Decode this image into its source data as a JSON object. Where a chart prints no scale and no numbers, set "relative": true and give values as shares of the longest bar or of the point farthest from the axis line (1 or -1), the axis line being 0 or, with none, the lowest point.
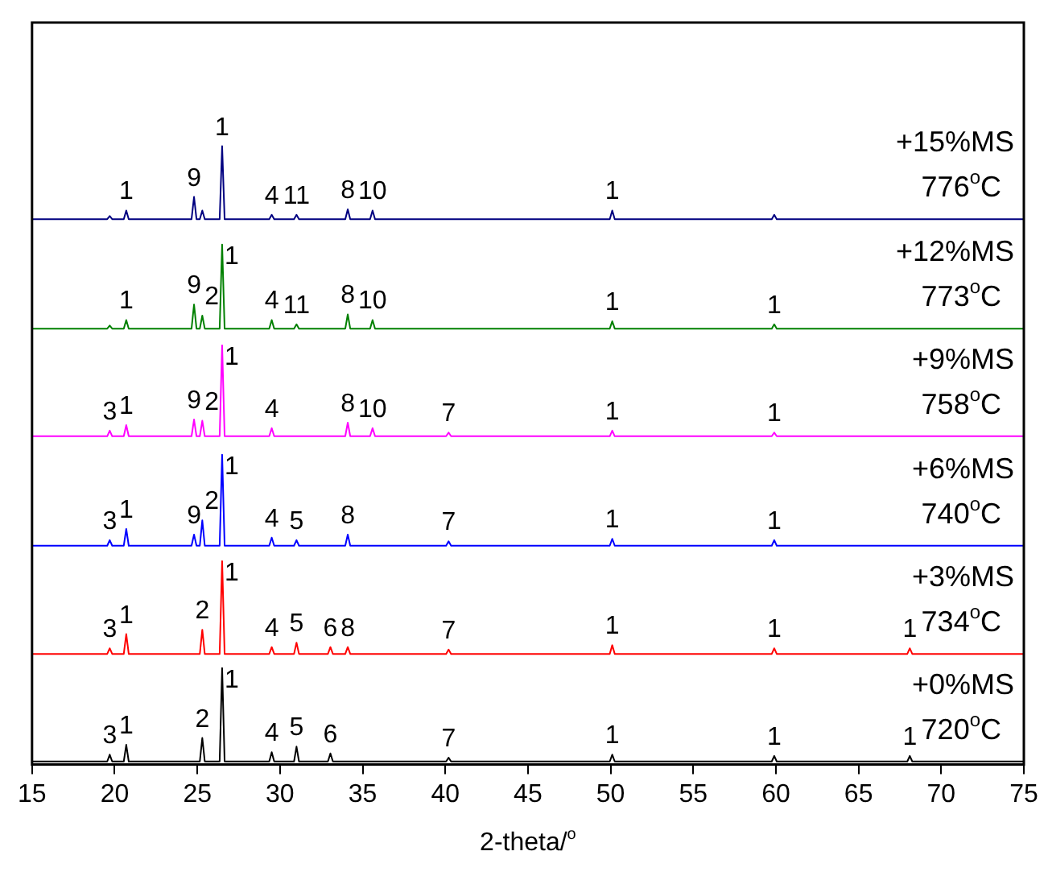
{
  "chart_data": {
    "type": "line",
    "relative": true,
    "xlabel": "2-theta/$^{o}$",
    "xlim": [
      15,
      75
    ],
    "xticks": [
      15,
      20,
      25,
      30,
      35,
      40,
      45,
      50,
      55,
      60,
      65,
      70,
      75
    ],
    "grid": false,
    "legend": false,
    "marker": "none",
    "line_style": "solid",
    "x": [
      15,
      19.55,
      19.7,
      19.85,
      20.55,
      20.7,
      20.85,
      24.65,
      24.8,
      24.95,
      25.15,
      25.3,
      25.45,
      26.35,
      26.5,
      26.65,
      29.35,
      29.5,
      29.65,
      30.85,
      31.0,
      31.15,
      32.9,
      33.05,
      33.2,
      33.95,
      34.1,
      34.25,
      35.45,
      35.6,
      35.75,
      40.05,
      40.2,
      40.35,
      49.95,
      50.1,
      50.25,
      59.75,
      59.9,
      60.05,
      67.95,
      68.1,
      68.25,
      75
    ],
    "series": [
      {
        "name": "+15%MS 776$^{o}$C",
        "color": "#000080",
        "values": [
          0.882,
          0.882,
          0.887,
          0.882,
          0.882,
          0.896,
          0.882,
          0.882,
          0.918,
          0.882,
          0.882,
          0.896,
          0.882,
          0.882,
          1,
          0.882,
          0.882,
          0.889,
          0.882,
          0.882,
          0.889,
          0.882,
          0.882,
          0.882,
          0.882,
          0.882,
          0.898,
          0.882,
          0.882,
          0.896,
          0.882,
          0.882,
          0.882,
          0.882,
          0.882,
          0.896,
          0.882,
          0.882,
          0.889,
          0.882,
          0.882,
          0.882,
          0.882,
          0.882
        ]
      },
      {
        "name": "+12%MS 773$^{o}$C",
        "color": "#008000",
        "values": [
          0.705,
          0.705,
          0.71,
          0.705,
          0.705,
          0.719,
          0.705,
          0.705,
          0.744,
          0.705,
          0.705,
          0.726,
          0.705,
          0.705,
          0.841,
          0.705,
          0.705,
          0.719,
          0.705,
          0.705,
          0.712,
          0.705,
          0.705,
          0.705,
          0.705,
          0.705,
          0.728,
          0.705,
          0.705,
          0.719,
          0.705,
          0.705,
          0.705,
          0.705,
          0.705,
          0.717,
          0.705,
          0.705,
          0.712,
          0.705,
          0.705,
          0.705,
          0.705,
          0.705
        ]
      },
      {
        "name": "+9%MS 758$^{o}$C",
        "color": "#ff00ff",
        "values": [
          0.531,
          0.531,
          0.54,
          0.531,
          0.531,
          0.549,
          0.531,
          0.531,
          0.558,
          0.531,
          0.531,
          0.556,
          0.531,
          0.531,
          0.678,
          0.531,
          0.531,
          0.544,
          0.531,
          0.531,
          0.531,
          0.531,
          0.531,
          0.531,
          0.531,
          0.531,
          0.553,
          0.531,
          0.531,
          0.544,
          0.531,
          0.531,
          0.537,
          0.531,
          0.531,
          0.54,
          0.531,
          0.531,
          0.537,
          0.531,
          0.531,
          0.531,
          0.531,
          0.531
        ]
      },
      {
        "name": "+6%MS 740$^{o}$C",
        "color": "#0000ff",
        "values": [
          0.354,
          0.354,
          0.363,
          0.354,
          0.354,
          0.381,
          0.354,
          0.354,
          0.372,
          0.354,
          0.354,
          0.395,
          0.354,
          0.354,
          0.501,
          0.354,
          0.354,
          0.367,
          0.354,
          0.354,
          0.363,
          0.354,
          0.354,
          0.354,
          0.354,
          0.354,
          0.372,
          0.354,
          0.354,
          0.354,
          0.354,
          0.354,
          0.361,
          0.354,
          0.354,
          0.365,
          0.354,
          0.354,
          0.363,
          0.354,
          0.354,
          0.354,
          0.354,
          0.354
        ]
      },
      {
        "name": "+3%MS 734$^{o}$C",
        "color": "#ff0000",
        "values": [
          0.179,
          0.179,
          0.188,
          0.179,
          0.179,
          0.211,
          0.179,
          0.179,
          0.179,
          0.179,
          0.179,
          0.218,
          0.179,
          0.179,
          0.329,
          0.179,
          0.179,
          0.19,
          0.179,
          0.179,
          0.197,
          0.179,
          0.179,
          0.19,
          0.179,
          0.179,
          0.19,
          0.179,
          0.179,
          0.179,
          0.179,
          0.179,
          0.186,
          0.179,
          0.179,
          0.193,
          0.179,
          0.179,
          0.188,
          0.179,
          0.179,
          0.188,
          0.179,
          0.179
        ]
      },
      {
        "name": "+0%MS 720$^{o}$C",
        "color": "#000000",
        "values": [
          0.005,
          0.005,
          0.016,
          0.005,
          0.005,
          0.032,
          0.005,
          0.005,
          0.005,
          0.005,
          0.005,
          0.043,
          0.005,
          0.005,
          0.156,
          0.005,
          0.005,
          0.02,
          0.005,
          0.005,
          0.029,
          0.005,
          0.005,
          0.018,
          0.005,
          0.005,
          0.005,
          0.005,
          0.005,
          0.005,
          0.005,
          0.005,
          0.011,
          0.005,
          0.005,
          0.016,
          0.005,
          0.005,
          0.014,
          0.005,
          0.005,
          0.014,
          0.005,
          0.005
        ]
      }
    ],
    "annotations": [
      {
        "text": "1",
        "x": 20.7,
        "y": 0.896
      },
      {
        "text": "9",
        "x": 24.8,
        "y": 0.918
      },
      {
        "text": "1",
        "x": 26.5,
        "y": 1
      },
      {
        "text": "4",
        "x": 29.5,
        "y": 0.889
      },
      {
        "text": "11",
        "x": 31.0,
        "y": 0.889
      },
      {
        "text": "8",
        "x": 34.1,
        "y": 0.898
      },
      {
        "text": "10",
        "x": 35.6,
        "y": 0.896
      },
      {
        "text": "1",
        "x": 50.1,
        "y": 0.896
      },
      {
        "text": "1",
        "x": 20.7,
        "y": 0.719
      },
      {
        "text": "9",
        "x": 24.8,
        "y": 0.744
      },
      {
        "text": "2",
        "x": 25.3,
        "y": 0.726
      },
      {
        "text": "1",
        "x": 26.5,
        "y": 0.841
      },
      {
        "text": "4",
        "x": 29.5,
        "y": 0.719
      },
      {
        "text": "11",
        "x": 31.0,
        "y": 0.712
      },
      {
        "text": "8",
        "x": 34.1,
        "y": 0.728
      },
      {
        "text": "10",
        "x": 35.6,
        "y": 0.719
      },
      {
        "text": "1",
        "x": 50.1,
        "y": 0.717
      },
      {
        "text": "1",
        "x": 59.9,
        "y": 0.712
      },
      {
        "text": "3",
        "x": 19.7,
        "y": 0.54
      },
      {
        "text": "1",
        "x": 20.7,
        "y": 0.549
      },
      {
        "text": "9",
        "x": 24.8,
        "y": 0.558
      },
      {
        "text": "2",
        "x": 25.3,
        "y": 0.556
      },
      {
        "text": "1",
        "x": 26.5,
        "y": 0.678
      },
      {
        "text": "4",
        "x": 29.5,
        "y": 0.544
      },
      {
        "text": "8",
        "x": 34.1,
        "y": 0.553
      },
      {
        "text": "10",
        "x": 35.6,
        "y": 0.544
      },
      {
        "text": "7",
        "x": 40.2,
        "y": 0.537
      },
      {
        "text": "1",
        "x": 50.1,
        "y": 0.54
      },
      {
        "text": "1",
        "x": 59.9,
        "y": 0.537
      },
      {
        "text": "3",
        "x": 19.7,
        "y": 0.363
      },
      {
        "text": "1",
        "x": 20.7,
        "y": 0.381
      },
      {
        "text": "9",
        "x": 24.8,
        "y": 0.372
      },
      {
        "text": "2",
        "x": 25.3,
        "y": 0.395
      },
      {
        "text": "1",
        "x": 26.5,
        "y": 0.501
      },
      {
        "text": "4",
        "x": 29.5,
        "y": 0.367
      },
      {
        "text": "5",
        "x": 31.0,
        "y": 0.363
      },
      {
        "text": "8",
        "x": 34.1,
        "y": 0.372
      },
      {
        "text": "7",
        "x": 40.2,
        "y": 0.361
      },
      {
        "text": "1",
        "x": 50.1,
        "y": 0.365
      },
      {
        "text": "1",
        "x": 59.9,
        "y": 0.363
      },
      {
        "text": "3",
        "x": 19.7,
        "y": 0.188
      },
      {
        "text": "1",
        "x": 20.7,
        "y": 0.211
      },
      {
        "text": "2",
        "x": 25.3,
        "y": 0.218
      },
      {
        "text": "1",
        "x": 26.5,
        "y": 0.329
      },
      {
        "text": "4",
        "x": 29.5,
        "y": 0.19
      },
      {
        "text": "5",
        "x": 31.0,
        "y": 0.197
      },
      {
        "text": "6",
        "x": 33.05,
        "y": 0.19
      },
      {
        "text": "8",
        "x": 34.1,
        "y": 0.19
      },
      {
        "text": "7",
        "x": 40.2,
        "y": 0.186
      },
      {
        "text": "1",
        "x": 50.1,
        "y": 0.193
      },
      {
        "text": "1",
        "x": 59.9,
        "y": 0.188
      },
      {
        "text": "1",
        "x": 68.1,
        "y": 0.188
      },
      {
        "text": "3",
        "x": 19.7,
        "y": 0.016
      },
      {
        "text": "1",
        "x": 20.7,
        "y": 0.032
      },
      {
        "text": "2",
        "x": 25.3,
        "y": 0.043
      },
      {
        "text": "1",
        "x": 26.5,
        "y": 0.156
      },
      {
        "text": "4",
        "x": 29.5,
        "y": 0.02
      },
      {
        "text": "5",
        "x": 31.0,
        "y": 0.029
      },
      {
        "text": "6",
        "x": 33.05,
        "y": 0.018
      },
      {
        "text": "7",
        "x": 40.2,
        "y": 0.011
      },
      {
        "text": "1",
        "x": 50.1,
        "y": 0.016
      },
      {
        "text": "1",
        "x": 59.9,
        "y": 0.014
      },
      {
        "text": "1",
        "x": 68.1,
        "y": 0.014
      }
    ]
  }
}
